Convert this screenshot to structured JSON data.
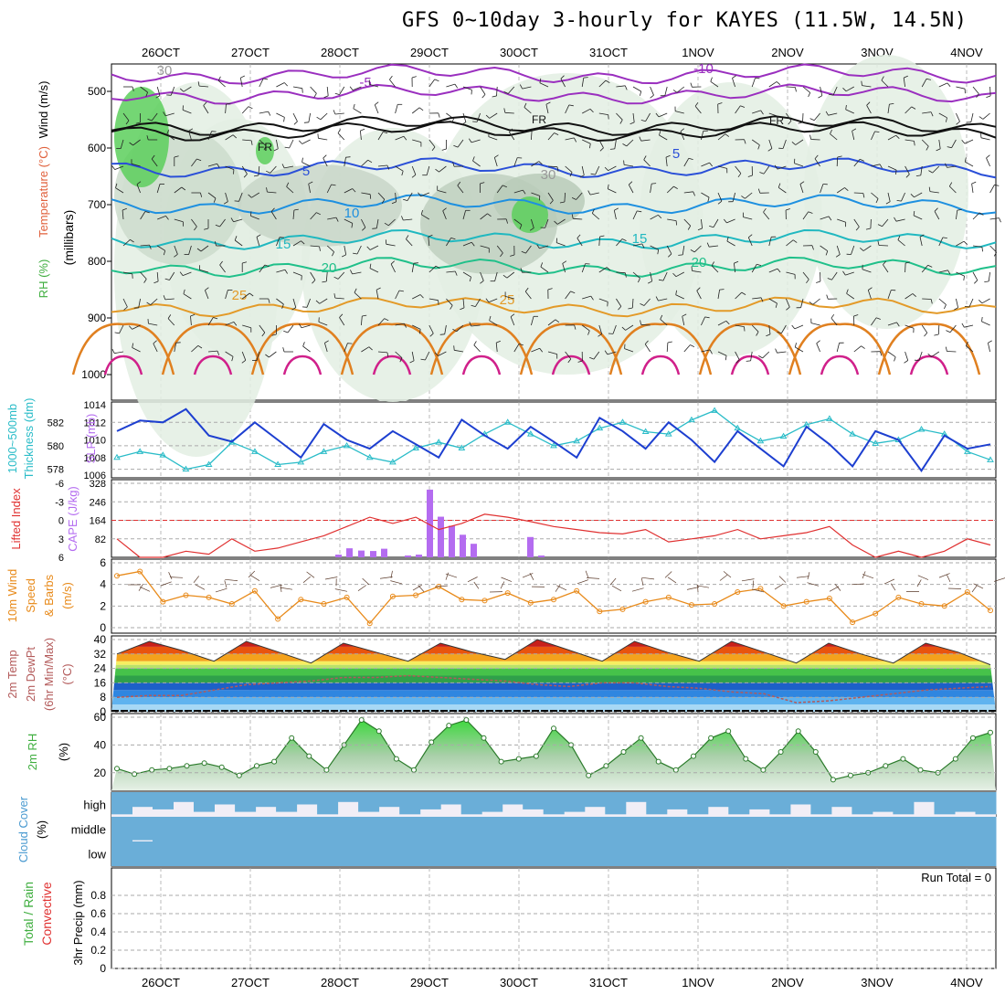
{
  "title": "GFS 0~10day 3-hourly for KAYES (11.5W, 14.5N)",
  "date_labels": [
    "26OCT",
    "27OCT",
    "28OCT",
    "29OCT",
    "30OCT",
    "31OCT",
    "1NOV",
    "2NOV",
    "3NOV",
    "4NOV"
  ],
  "colors": {
    "rh_fill": "#5ccf5c",
    "wind_barb": "#222222",
    "slp_line": "#1d3fd0",
    "thickness_line": "#2abcc8",
    "lifted_index": "#e03030",
    "cape_bar": "#b46cf0",
    "wind10": "#e88a1a",
    "dewpoint": "#b35a5a",
    "rh2m": "#3fae3f",
    "cloud": "#6aaed8",
    "cloud_clear": "#f1eef6"
  },
  "panels": {
    "upper_air": {
      "ylabel_parts": [
        "Wind (m/s)",
        "Temperature (°C)",
        "RH (%)"
      ],
      "yunit": "(millibars)",
      "yticks": [
        "500",
        "600",
        "700",
        "800",
        "900",
        "1000"
      ],
      "contour_labels": [
        "-10",
        "-5",
        "FR",
        "FR",
        "FR",
        "5",
        "5",
        "10",
        "15",
        "15",
        "20",
        "20",
        "25",
        "25",
        "30",
        "30"
      ]
    },
    "pressure": {
      "ylabel_left": [
        "1000~500mb",
        "Thickness (dm)"
      ],
      "ylabel_right": "SLP (mb)",
      "thickness_ticks": [
        "582",
        "580",
        "578"
      ],
      "slp_ticks": [
        "1014",
        "1012",
        "1010",
        "1008",
        "1006"
      ]
    },
    "stability": {
      "ylabel_left": "Lifted Index",
      "ylabel_right": "CAPE (J/kg)",
      "li_ticks": [
        "-6",
        "-3",
        "0",
        "3",
        "6"
      ],
      "cape_ticks": [
        "328",
        "246",
        "164",
        "82"
      ]
    },
    "wind10": {
      "ylabel": [
        "10m Wind",
        "Speed",
        "& Barbs",
        "(m/s)"
      ],
      "yticks": [
        "6",
        "4",
        "2",
        "0"
      ]
    },
    "temperature": {
      "ylabel": [
        "2m Temp",
        "2m DewPt",
        "(6hr Min/Max)",
        "(°C)"
      ],
      "yticks": [
        "40",
        "32",
        "24",
        "16",
        "8",
        "0"
      ]
    },
    "rh2m": {
      "ylabel": [
        "2m RH",
        "(%)"
      ],
      "yticks": [
        "60",
        "40",
        "20"
      ]
    },
    "cloud": {
      "ylabel": [
        "Cloud Cover",
        "(%)"
      ],
      "levels": [
        "high",
        "middle",
        "low"
      ]
    },
    "precip": {
      "ylabel_parts": [
        "Total / Rain",
        "Convective",
        "3hr Precip (mm)"
      ],
      "yticks": [
        "0.8",
        "0.6",
        "0.4",
        "0.2",
        "0"
      ],
      "run_total": "Run Total = 0"
    }
  },
  "chart_data": [
    {
      "type": "line",
      "name": "SLP (mb)",
      "x_start": "2025-10-25T12:00",
      "x_step_hours": 6,
      "ylim": [
        1006,
        1014
      ],
      "values": [
        1011.0,
        1012.2,
        1012.0,
        1013.5,
        1010.5,
        1009.8,
        1012.0,
        1010.0,
        1008.0,
        1011.8,
        1010.0,
        1009.0,
        1011.0,
        1009.5,
        1008.0,
        1012.3,
        1010.5,
        1009.0,
        1011.5,
        1009.8,
        1008.0,
        1012.5,
        1011.0,
        1009.0,
        1012.0,
        1010.0,
        1007.5,
        1011.0,
        1009.0,
        1007.0,
        1011.5,
        1009.5,
        1007.0,
        1011.0,
        1010.0,
        1006.5,
        1010.5,
        1009.0,
        1009.5
      ]
    },
    {
      "type": "line",
      "name": "1000~500mb Thickness (dm)",
      "x_start": "2025-10-25T12:00",
      "x_step_hours": 6,
      "ylim": [
        577.5,
        583.5
      ],
      "values": [
        579.0,
        579.5,
        579.2,
        578.0,
        578.4,
        580.3,
        579.5,
        578.4,
        578.6,
        579.5,
        580.0,
        579.0,
        578.6,
        579.8,
        580.3,
        579.8,
        581.0,
        582.0,
        581.0,
        580.0,
        580.4,
        581.5,
        582.0,
        581.2,
        581.0,
        582.2,
        583.0,
        581.5,
        580.4,
        580.8,
        581.8,
        582.3,
        581.0,
        580.2,
        580.5,
        581.4,
        581.0,
        579.5,
        578.8
      ]
    },
    {
      "type": "bar",
      "name": "CAPE (J/kg)",
      "x": [
        "28OCT 00",
        "28OCT 03",
        "28OCT 06",
        "28OCT 09",
        "28OCT 12",
        "28OCT 18",
        "28OCT 21",
        "29OCT 00",
        "29OCT 03",
        "29OCT 06",
        "29OCT 09",
        "29OCT 12",
        "30OCT 06",
        "30OCT 09"
      ],
      "values": [
        12,
        40,
        30,
        28,
        38,
        8,
        12,
        300,
        180,
        140,
        100,
        60,
        90,
        8
      ],
      "ylim": [
        0,
        328
      ]
    },
    {
      "type": "line",
      "name": "Lifted Index",
      "ylim": [
        6,
        -6
      ],
      "values": [
        3.0,
        6.0,
        6.0,
        5.0,
        5.5,
        3.0,
        5.0,
        4.5,
        3.5,
        2.5,
        1.0,
        -0.5,
        0.5,
        -0.5,
        1.5,
        0.5,
        -1.0,
        -0.5,
        0.2,
        1.0,
        1.5,
        2.0,
        2.2,
        1.5,
        3.5,
        3.0,
        2.5,
        1.5,
        3.0,
        2.5,
        2.0,
        1.0,
        4.0,
        6.0,
        5.0,
        6.5,
        5.0,
        3.0,
        4.0
      ]
    },
    {
      "type": "line",
      "name": "10m Wind Speed (m/s)",
      "ylim": [
        0,
        6
      ],
      "values": [
        4.8,
        5.2,
        2.4,
        3.0,
        2.8,
        2.2,
        3.4,
        0.8,
        2.6,
        2.2,
        2.8,
        0.4,
        2.9,
        3.0,
        3.8,
        2.6,
        2.5,
        3.2,
        2.3,
        2.6,
        3.4,
        1.5,
        1.7,
        2.4,
        2.8,
        2.1,
        2.2,
        3.3,
        3.6,
        2.0,
        2.4,
        2.7,
        0.5,
        1.3,
        2.8,
        2.2,
        2.0,
        3.3,
        1.6
      ]
    },
    {
      "type": "area",
      "name": "2m Temp (°C)",
      "ylim": [
        0,
        40
      ],
      "max_values": [
        32,
        39,
        34,
        28,
        39,
        33,
        27,
        38,
        33,
        28,
        38,
        33,
        29,
        40,
        34,
        28,
        39,
        33,
        28,
        39,
        33,
        27,
        38,
        32,
        27,
        38,
        33,
        26
      ],
      "dewpoint_values": [
        8,
        9,
        9,
        12,
        15,
        16,
        17,
        19,
        19,
        20,
        19,
        18,
        17,
        15,
        14,
        16,
        16,
        14,
        13,
        11,
        10,
        5,
        6,
        8,
        10,
        12,
        13,
        14
      ]
    },
    {
      "type": "area",
      "name": "2m RH (%)",
      "ylim": [
        10,
        60
      ],
      "values": [
        23,
        19,
        22,
        23,
        25,
        27,
        24,
        18,
        25,
        28,
        45,
        32,
        22,
        40,
        58,
        50,
        30,
        22,
        42,
        54,
        58,
        45,
        28,
        30,
        32,
        52,
        40,
        18,
        25,
        35,
        45,
        28,
        22,
        32,
        45,
        50,
        30,
        22,
        35,
        50,
        35,
        15,
        18,
        20,
        25,
        30,
        22,
        20,
        30,
        45,
        49
      ]
    },
    {
      "type": "area",
      "name": "Cloud Cover (%)",
      "series": [
        {
          "name": "high",
          "values": [
            90,
            60,
            70,
            40,
            80,
            50,
            80,
            60,
            80,
            50,
            90,
            40,
            80,
            60,
            90,
            70,
            50,
            90,
            80,
            50,
            70,
            90,
            80,
            60,
            90,
            40,
            90,
            70,
            90,
            60,
            90,
            70,
            90,
            50,
            90,
            60,
            90,
            80,
            90,
            40,
            90,
            80,
            90
          ]
        },
        {
          "name": "middle",
          "values": [
            100,
            95,
            100,
            100,
            100,
            100,
            100,
            100,
            100,
            100,
            100,
            100,
            100,
            100,
            100,
            100,
            100,
            100,
            100,
            100,
            100,
            100,
            100,
            100,
            100,
            100,
            100,
            100,
            100,
            100,
            100,
            100,
            100,
            100,
            100,
            100,
            100,
            100,
            100,
            100,
            100,
            100,
            100
          ]
        },
        {
          "name": "low",
          "values": [
            100,
            100,
            100,
            100,
            100,
            100,
            100,
            100,
            100,
            100,
            100,
            100,
            100,
            100,
            100,
            100,
            100,
            100,
            100,
            100,
            100,
            100,
            100,
            100,
            100,
            100,
            100,
            100,
            100,
            100,
            100,
            100,
            100,
            100,
            100,
            100,
            100,
            100,
            100,
            100,
            100,
            100,
            100
          ]
        }
      ]
    },
    {
      "type": "line",
      "name": "3hr Precip (mm)",
      "ylim": [
        0,
        1
      ],
      "values": [
        0,
        0,
        0,
        0,
        0,
        0,
        0,
        0,
        0,
        0
      ]
    }
  ]
}
